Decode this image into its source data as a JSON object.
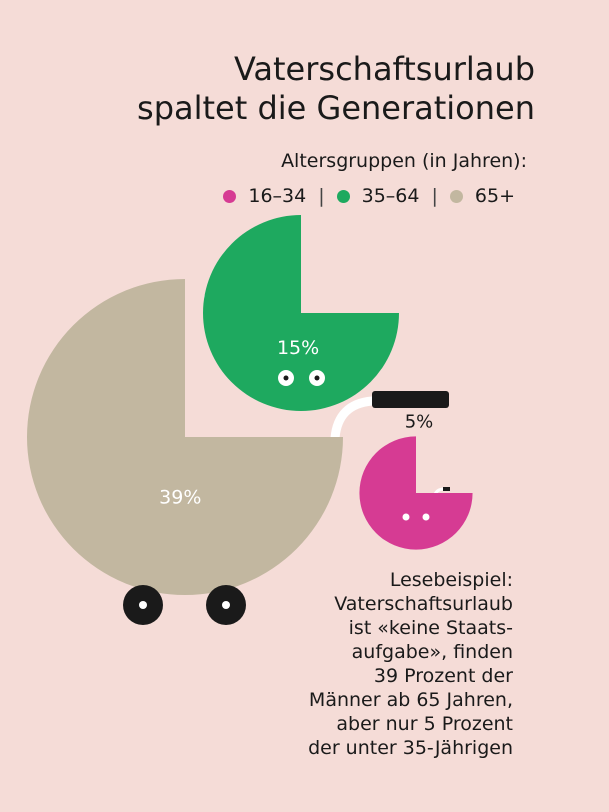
{
  "title_line1": "Vaterschaftsurlaub",
  "title_line2": "spaltet die Generationen",
  "legend_title": "Altersgruppen (in Jahren):",
  "legend": [
    {
      "label": "16–34",
      "color": "#d63b93"
    },
    {
      "label": "35–64",
      "color": "#1ea95f"
    },
    {
      "label": "65+",
      "color": "#c2b7a0"
    }
  ],
  "chart_data": {
    "type": "pie",
    "title": "Vaterschaftsurlaub spaltet die Generationen",
    "subtitle": "Altersgruppen (in Jahren):",
    "categories": [
      "16–34",
      "35–64",
      "65+"
    ],
    "values": [
      5,
      15,
      39
    ],
    "labels": [
      "5%",
      "15%",
      "39%"
    ],
    "colors": [
      "#d63b93",
      "#1ea95f",
      "#c2b7a0"
    ],
    "legend_position": "top-right"
  },
  "reading": [
    "Lesebeispiel:",
    "Vaterschaftsurlaub",
    "ist «keine Staats-",
    "aufgabe», finden",
    "39 Prozent der",
    "Männer ab 65 Jahren,",
    "aber nur 5 Prozent",
    "der unter 35-Jährigen"
  ]
}
